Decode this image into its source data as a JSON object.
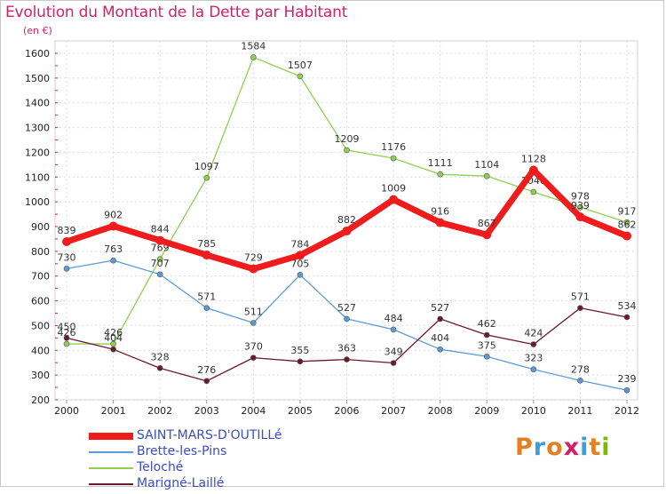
{
  "header": {
    "title": "Evolution du Montant de la Dette par Habitant",
    "unit": "(en €)"
  },
  "logo": {
    "text": "Proxiti",
    "colors": [
      "#e67e22",
      "#3aa0d6",
      "#e67e22",
      "#d21f6b",
      "#3aa0d6",
      "#e67e22",
      "#7fb800"
    ]
  },
  "chart_data": {
    "type": "line",
    "title": "Evolution du Montant de la Dette par Habitant",
    "ylabel": "(en €)",
    "xlabel": "",
    "ylim": [
      200,
      1600
    ],
    "yticks": [
      200,
      300,
      400,
      500,
      600,
      700,
      800,
      900,
      1000,
      1100,
      1200,
      1300,
      1400,
      1500,
      1600
    ],
    "grid": true,
    "legend_position": "bottom-left",
    "x": [
      "2000",
      "2001",
      "2002",
      "2003",
      "2004",
      "2005",
      "2006",
      "2007",
      "2008",
      "2009",
      "2010",
      "2011",
      "2012"
    ],
    "series": [
      {
        "name": "Teloché",
        "color": "#8fd14f",
        "values": [
          426,
          426,
          769,
          1097,
          1584,
          1507,
          1209,
          1176,
          1111,
          1104,
          1040,
          978,
          917
        ]
      },
      {
        "name": "Brette-les-Pins",
        "color": "#5b9bd5",
        "values": [
          730,
          763,
          707,
          571,
          511,
          705,
          527,
          484,
          404,
          375,
          323,
          278,
          239
        ]
      },
      {
        "name": "Marigné-Laillé",
        "color": "#6b1a2a",
        "values": [
          450,
          404,
          328,
          276,
          370,
          355,
          363,
          349,
          527,
          462,
          424,
          571,
          534
        ]
      },
      {
        "name": "SAINT-MARS-D'OUTILLé",
        "color": "#ee1c1c",
        "values": [
          839,
          902,
          844,
          785,
          729,
          784,
          882,
          1009,
          916,
          867,
          1128,
          939,
          862
        ]
      }
    ]
  },
  "legend": [
    {
      "name": "SAINT-MARS-D'OUTILLé",
      "color": "#ee1c1c"
    },
    {
      "name": "Brette-les-Pins",
      "color": "#5b9bd5"
    },
    {
      "name": "Teloché",
      "color": "#8fd14f"
    },
    {
      "name": "Marigné-Laillé",
      "color": "#6b1a2a"
    }
  ]
}
